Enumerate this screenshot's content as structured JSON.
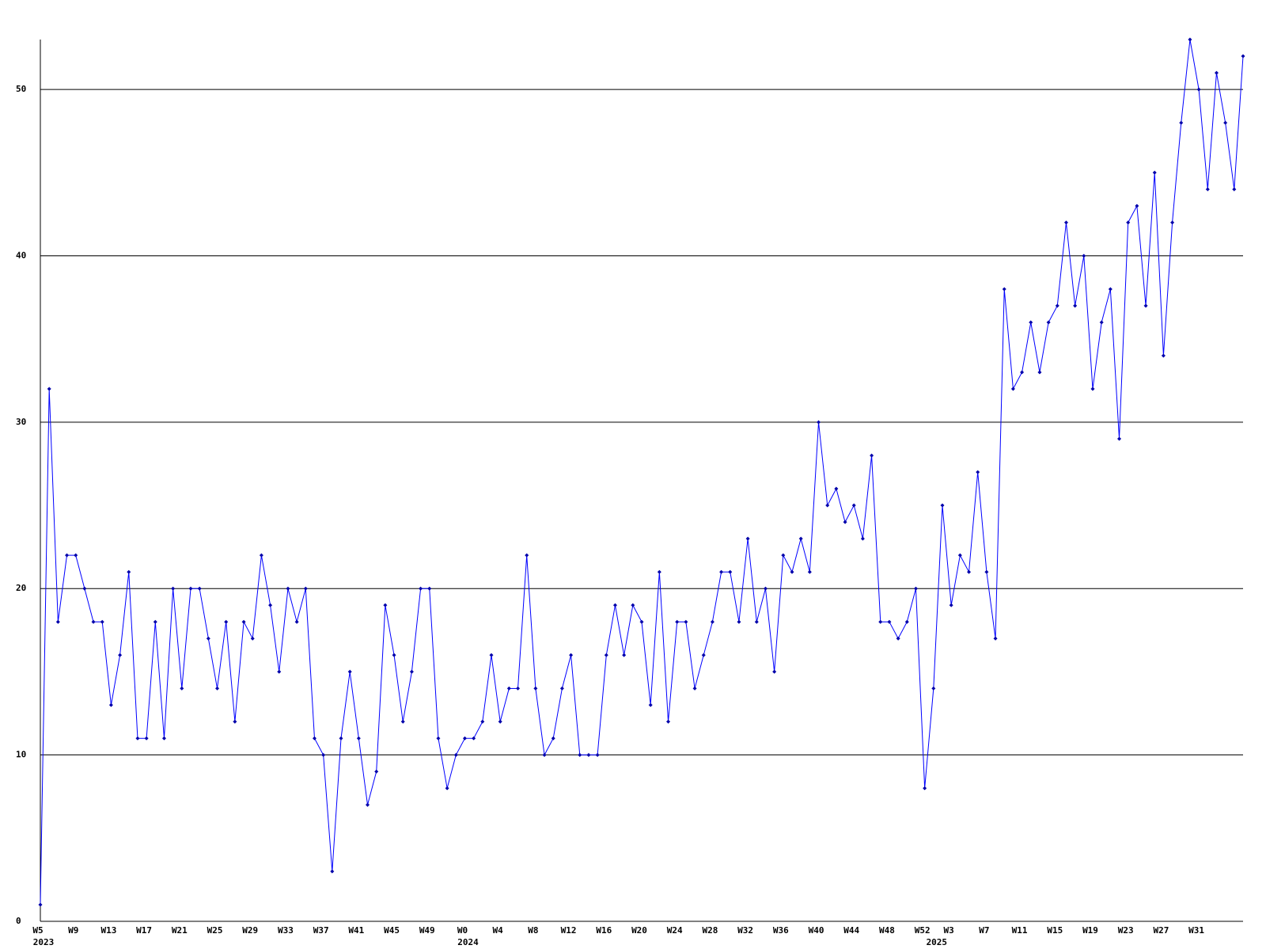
{
  "chart_data": {
    "type": "line",
    "categories": [
      "W5",
      null,
      null,
      null,
      "W9",
      null,
      null,
      null,
      "W13",
      null,
      null,
      null,
      "W17",
      null,
      null,
      null,
      "W21",
      null,
      null,
      null,
      "W25",
      null,
      null,
      null,
      "W29",
      null,
      null,
      null,
      "W33",
      null,
      null,
      null,
      "W37",
      null,
      null,
      null,
      "W41",
      null,
      null,
      null,
      "W45",
      null,
      null,
      null,
      "W49",
      null,
      null,
      null,
      "W0",
      null,
      null,
      null,
      "W4",
      null,
      null,
      null,
      "W8",
      null,
      null,
      null,
      "W12",
      null,
      null,
      null,
      "W16",
      null,
      null,
      null,
      "W20",
      null,
      null,
      null,
      "W24",
      null,
      null,
      null,
      "W28",
      null,
      null,
      null,
      "W32",
      null,
      null,
      null,
      "W36",
      null,
      null,
      null,
      "W40",
      null,
      null,
      null,
      "W44",
      null,
      null,
      null,
      "W48",
      null,
      null,
      null,
      "W52",
      null,
      null,
      "W3",
      null,
      null,
      null,
      "W7",
      null,
      null,
      null,
      "W11",
      null,
      null,
      null,
      "W15",
      null,
      null,
      null,
      "W19",
      null,
      null,
      null,
      "W23",
      null,
      null,
      null,
      "W27",
      null,
      null,
      null,
      "W31",
      null,
      null,
      null,
      null,
      null
    ],
    "year_labels": [
      {
        "index": 0,
        "label": "2023"
      },
      {
        "index": 48,
        "label": "2024"
      },
      {
        "index": 101,
        "label": "2025"
      }
    ],
    "series": [
      {
        "color": "#0000ff",
        "marker_color": "#0000aa",
        "values": [
          1,
          32,
          18,
          22,
          22,
          20,
          18,
          18,
          13,
          16,
          21,
          11,
          11,
          18,
          11,
          20,
          14,
          20,
          20,
          17,
          14,
          18,
          12,
          18,
          17,
          22,
          19,
          15,
          20,
          18,
          20,
          11,
          10,
          3,
          11,
          15,
          11,
          7,
          9,
          19,
          16,
          12,
          15,
          20,
          20,
          11,
          8,
          10,
          11,
          11,
          12,
          16,
          12,
          14,
          14,
          22,
          14,
          10,
          11,
          14,
          16,
          10,
          10,
          10,
          16,
          19,
          16,
          19,
          18,
          13,
          21,
          12,
          18,
          18,
          14,
          16,
          18,
          21,
          21,
          18,
          23,
          18,
          20,
          15,
          22,
          21,
          23,
          21,
          30,
          25,
          26,
          24,
          25,
          23,
          28,
          18,
          18,
          17,
          18,
          20,
          8,
          14,
          25,
          19,
          22,
          21,
          27,
          21,
          17,
          38,
          32,
          33,
          36,
          33,
          36,
          37,
          42,
          37,
          40,
          32,
          36,
          38,
          29,
          42,
          43,
          37,
          45,
          34,
          42,
          48,
          53,
          50,
          44,
          51,
          48,
          44,
          52
        ]
      }
    ],
    "ylim": [
      0,
      53
    ],
    "yticks": [
      0,
      10,
      20,
      30,
      40,
      50
    ],
    "grid": true,
    "grid_color": "#000000"
  }
}
